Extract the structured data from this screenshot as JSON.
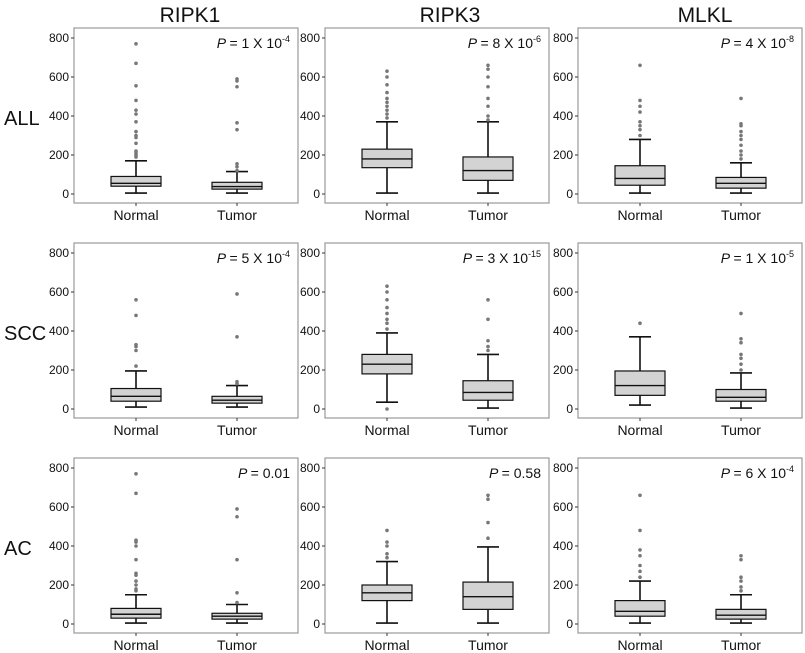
{
  "chart_data": {
    "type": "box",
    "columns": [
      "RIPK1",
      "RIPK3",
      "MLKL"
    ],
    "rows": [
      "ALL",
      "SCC",
      "AC"
    ],
    "categories": [
      "Normal",
      "Tumor"
    ],
    "yticks": [
      "0",
      "200",
      "400",
      "600",
      "800"
    ],
    "ytick_values": [
      0,
      200,
      400,
      600,
      800
    ],
    "ylim": [
      0,
      800
    ],
    "colors": {
      "box": "#d3d3d3",
      "line": "#111111",
      "outlier": "#777777",
      "frame": "#999999"
    },
    "panels": [
      {
        "row": "ALL",
        "col": "RIPK1",
        "p": {
          "label": "P",
          "text": "= 1 X 10",
          "exp": "-4"
        },
        "boxes": [
          {
            "min": 5,
            "q1": 40,
            "median": 55,
            "q3": 90,
            "max": 170,
            "outliers": [
              190,
              200,
              210,
              220,
              260,
              290,
              300,
              320,
              370,
              410,
              430,
              480,
              555,
              670,
              770
            ]
          },
          {
            "min": 5,
            "q1": 25,
            "median": 38,
            "q3": 60,
            "max": 115,
            "outliers": [
              120,
              140,
              155,
              330,
              365,
              550,
              580,
              590
            ]
          }
        ]
      },
      {
        "row": "ALL",
        "col": "RIPK3",
        "p": {
          "label": "P",
          "text": "= 8 X 10",
          "exp": "-6"
        },
        "boxes": [
          {
            "min": 5,
            "q1": 135,
            "median": 180,
            "q3": 230,
            "max": 370,
            "outliers": [
              390,
              410,
              430,
              450,
              470,
              490,
              520,
              560,
              600,
              630
            ]
          },
          {
            "min": 5,
            "q1": 70,
            "median": 120,
            "q3": 190,
            "max": 370,
            "outliers": [
              380,
              400,
              450,
              490,
              550,
              600,
              640,
              660
            ]
          }
        ]
      },
      {
        "row": "ALL",
        "col": "MLKL",
        "p": {
          "label": "P",
          "text": "= 4 X 10",
          "exp": "-8"
        },
        "boxes": [
          {
            "min": 5,
            "q1": 45,
            "median": 80,
            "q3": 145,
            "max": 280,
            "outliers": [
              300,
              330,
              350,
              370,
              420,
              450,
              480,
              660
            ]
          },
          {
            "min": 5,
            "q1": 30,
            "median": 55,
            "q3": 85,
            "max": 160,
            "outliers": [
              180,
              200,
              220,
              250,
              280,
              300,
              320,
              350,
              360,
              490
            ]
          }
        ]
      },
      {
        "row": "SCC",
        "col": "RIPK1",
        "p": {
          "label": "P",
          "text": "= 5 X 10",
          "exp": "-4"
        },
        "boxes": [
          {
            "min": 10,
            "q1": 40,
            "median": 65,
            "q3": 105,
            "max": 195,
            "outliers": [
              220,
              300,
              320,
              330,
              480,
              560
            ]
          },
          {
            "min": 10,
            "q1": 30,
            "median": 45,
            "q3": 65,
            "max": 120,
            "outliers": [
              130,
              140,
              370,
              590
            ]
          }
        ]
      },
      {
        "row": "SCC",
        "col": "RIPK3",
        "p": {
          "label": "P",
          "text": "= 3 X 10",
          "exp": "-15"
        },
        "boxes": [
          {
            "min": 35,
            "q1": 180,
            "median": 230,
            "q3": 280,
            "max": 390,
            "outliers": [
              0,
              410,
              440,
              460,
              490,
              520,
              560,
              600,
              630
            ]
          },
          {
            "min": 5,
            "q1": 45,
            "median": 85,
            "q3": 145,
            "max": 280,
            "outliers": [
              300,
              320,
              350,
              460,
              560
            ]
          }
        ]
      },
      {
        "row": "SCC",
        "col": "MLKL",
        "p": {
          "label": "P",
          "text": "= 1 X 10",
          "exp": "-5"
        },
        "boxes": [
          {
            "min": 20,
            "q1": 70,
            "median": 120,
            "q3": 195,
            "max": 370,
            "outliers": [
              440
            ]
          },
          {
            "min": 5,
            "q1": 40,
            "median": 60,
            "q3": 100,
            "max": 185,
            "outliers": [
              200,
              230,
              260,
              280,
              340,
              360,
              490
            ]
          }
        ]
      },
      {
        "row": "AC",
        "col": "RIPK1",
        "p": {
          "label": "P",
          "text": "= 0.01",
          "exp": ""
        },
        "boxes": [
          {
            "min": 5,
            "q1": 30,
            "median": 50,
            "q3": 80,
            "max": 150,
            "outliers": [
              170,
              180,
              200,
              220,
              250,
              260,
              330,
              400,
              420,
              430,
              670,
              770
            ]
          },
          {
            "min": 5,
            "q1": 25,
            "median": 40,
            "q3": 55,
            "max": 100,
            "outliers": [
              110,
              160,
              330,
              550,
              590
            ]
          }
        ]
      },
      {
        "row": "AC",
        "col": "RIPK3",
        "p": {
          "label": "P",
          "text": "= 0.58",
          "exp": ""
        },
        "boxes": [
          {
            "min": 5,
            "q1": 120,
            "median": 160,
            "q3": 200,
            "max": 320,
            "outliers": [
              340,
              360,
              400,
              420,
              480
            ]
          },
          {
            "min": 5,
            "q1": 75,
            "median": 140,
            "q3": 215,
            "max": 395,
            "outliers": [
              440,
              520,
              640,
              660
            ]
          }
        ]
      },
      {
        "row": "AC",
        "col": "MLKL",
        "p": {
          "label": "P",
          "text": "= 6 X 10",
          "exp": "-4"
        },
        "boxes": [
          {
            "min": 5,
            "q1": 40,
            "median": 65,
            "q3": 120,
            "max": 220,
            "outliers": [
              240,
              270,
              300,
              350,
              380,
              480,
              660
            ]
          },
          {
            "min": 5,
            "q1": 25,
            "median": 45,
            "q3": 75,
            "max": 150,
            "outliers": [
              170,
              190,
              220,
              240,
              330,
              350
            ]
          }
        ]
      }
    ]
  }
}
